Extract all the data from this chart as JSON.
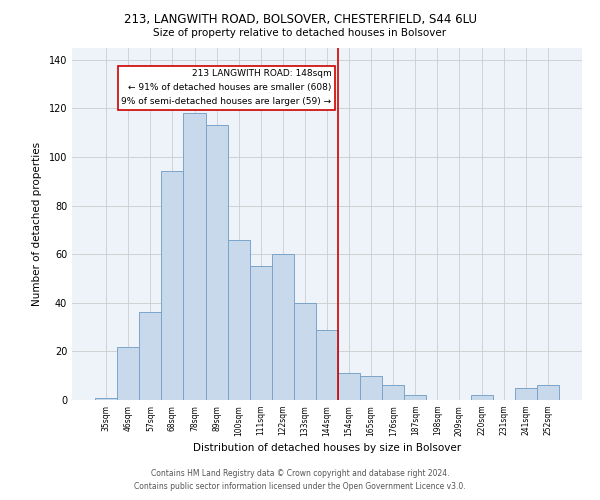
{
  "title": "213, LANGWITH ROAD, BOLSOVER, CHESTERFIELD, S44 6LU",
  "subtitle": "Size of property relative to detached houses in Bolsover",
  "xlabel": "Distribution of detached houses by size in Bolsover",
  "ylabel": "Number of detached properties",
  "bar_labels": [
    "35sqm",
    "46sqm",
    "57sqm",
    "68sqm",
    "78sqm",
    "89sqm",
    "100sqm",
    "111sqm",
    "122sqm",
    "133sqm",
    "144sqm",
    "154sqm",
    "165sqm",
    "176sqm",
    "187sqm",
    "198sqm",
    "209sqm",
    "220sqm",
    "231sqm",
    "241sqm",
    "252sqm"
  ],
  "bar_values": [
    1,
    22,
    36,
    94,
    118,
    113,
    66,
    55,
    60,
    40,
    29,
    11,
    10,
    6,
    2,
    0,
    0,
    2,
    0,
    5,
    6
  ],
  "bar_color": "#c8d9ec",
  "bar_edge_color": "#7ba4c9",
  "vline_x_index": 10.5,
  "vline_color": "#cc0000",
  "annotation_line1": "213 LANGWITH ROAD: 148sqm",
  "annotation_line2": "← 91% of detached houses are smaller (608)",
  "annotation_line3": "9% of semi-detached houses are larger (59) →",
  "annotation_box_color": "#cc0000",
  "footer_line1": "Contains HM Land Registry data © Crown copyright and database right 2024.",
  "footer_line2": "Contains public sector information licensed under the Open Government Licence v3.0.",
  "ylim": [
    0,
    145
  ],
  "yticks": [
    0,
    20,
    40,
    60,
    80,
    100,
    120,
    140
  ],
  "bg_color": "#eef2f9",
  "grid_color": "#cccccc"
}
